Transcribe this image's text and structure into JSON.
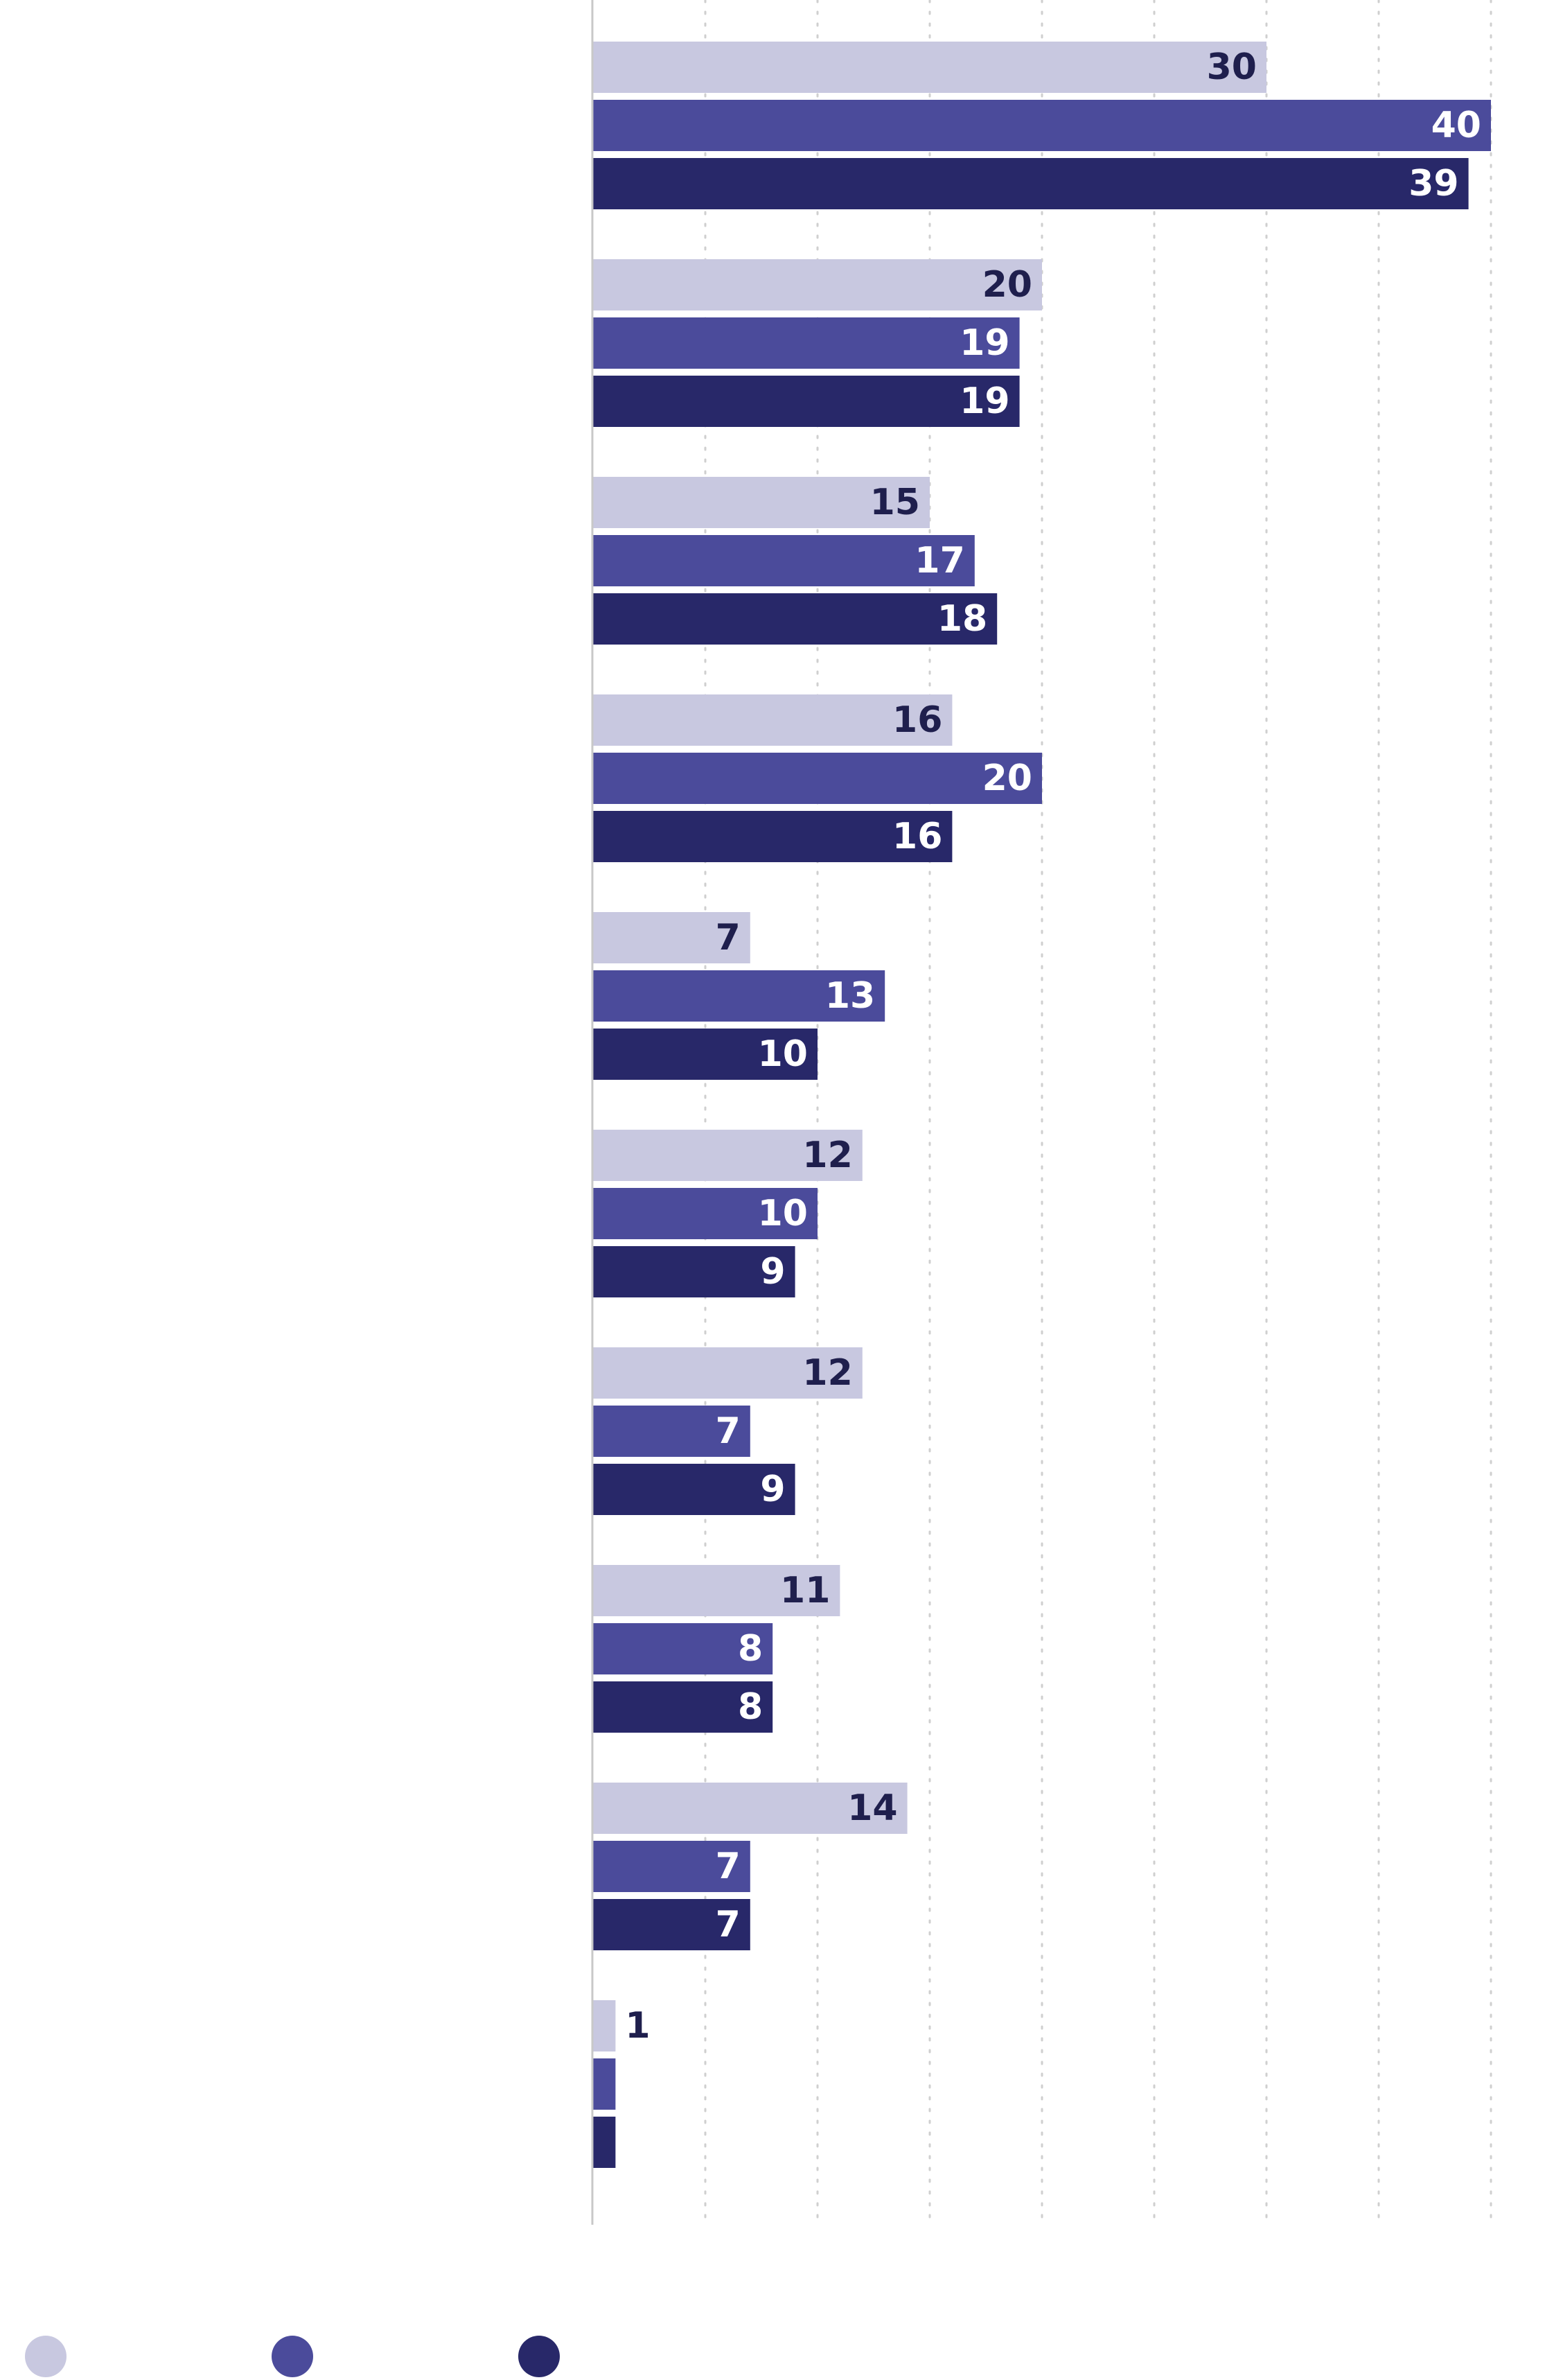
{
  "chart_data": {
    "type": "bar",
    "orientation": "horizontal",
    "categories": [
      "",
      "",
      "",
      "",
      "",
      "",
      "",
      "",
      "",
      ""
    ],
    "series": [
      {
        "name": "",
        "color": "#c8c8e0",
        "label_color": "#1f1f4d",
        "values": [
          30,
          20,
          15,
          16,
          7,
          12,
          12,
          11,
          14,
          1
        ]
      },
      {
        "name": "",
        "color": "#4b4b9b",
        "label_color": "#ffffff",
        "values": [
          40,
          19,
          17,
          20,
          13,
          10,
          7,
          8,
          7,
          1
        ]
      },
      {
        "name": "",
        "color": "#282869",
        "label_color": "#ffffff",
        "values": [
          39,
          19,
          18,
          16,
          10,
          9,
          9,
          8,
          7,
          1
        ]
      }
    ],
    "value_labels": [
      [
        "30",
        "40",
        "39"
      ],
      [
        "20",
        "19",
        "19"
      ],
      [
        "15",
        "17",
        "18"
      ],
      [
        "16",
        "20",
        "16"
      ],
      [
        "7",
        "13",
        "10"
      ],
      [
        "12",
        "10",
        "9"
      ],
      [
        "12",
        "7",
        "9"
      ],
      [
        "11",
        "8",
        "8"
      ],
      [
        "14",
        "7",
        "7"
      ],
      [
        "1",
        "",
        ""
      ]
    ],
    "xlim": [
      0,
      40
    ],
    "grid": true,
    "grid_step": 5,
    "title": "",
    "xlabel": "",
    "ylabel": "",
    "legend_position": "bottom-left"
  }
}
